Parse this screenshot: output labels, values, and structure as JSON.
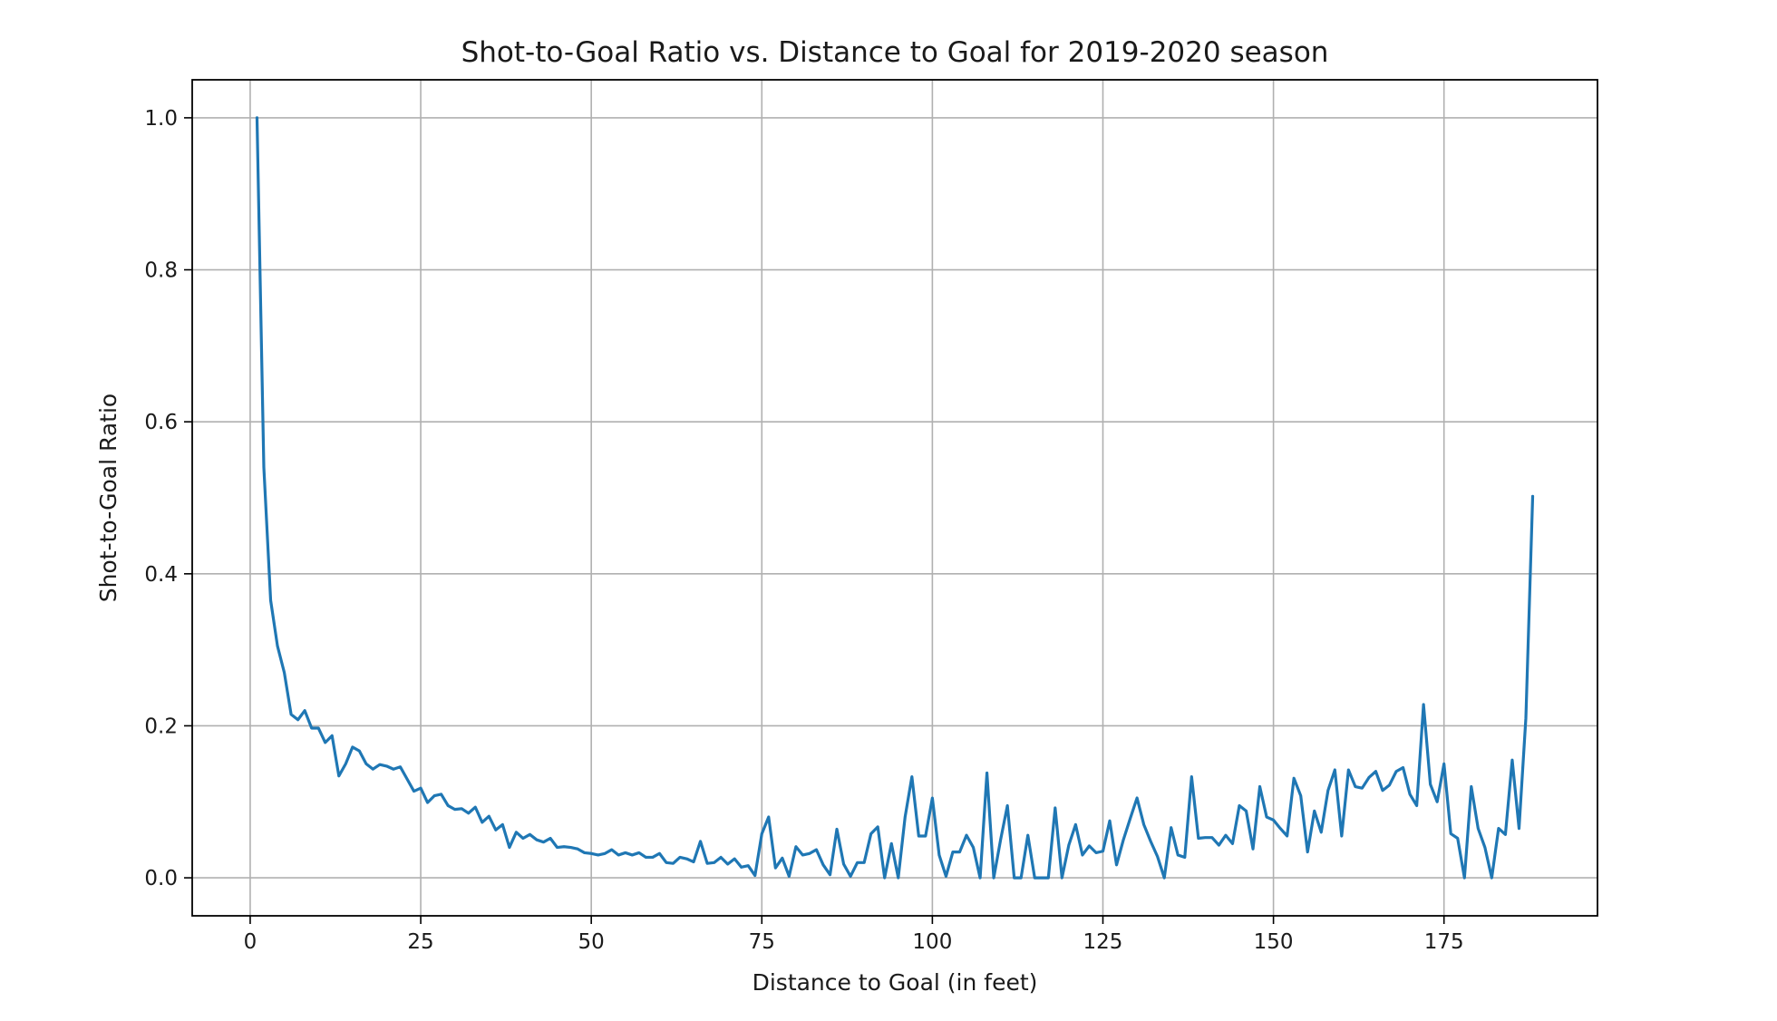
{
  "chart_data": {
    "type": "line",
    "title": "Shot-to-Goal Ratio vs. Distance to Goal for 2019-2020 season",
    "xlabel": "Distance to Goal (in feet)",
    "ylabel": "Shot-to-Goal Ratio",
    "xlim": [
      -8.5,
      197.5
    ],
    "ylim": [
      -0.05,
      1.05
    ],
    "xticks": [
      0,
      25,
      50,
      75,
      100,
      125,
      150,
      175
    ],
    "yticks": [
      0.0,
      0.2,
      0.4,
      0.6,
      0.8,
      1.0
    ],
    "xtick_labels": [
      "0",
      "25",
      "50",
      "75",
      "100",
      "125",
      "150",
      "175"
    ],
    "ytick_labels": [
      "0.0",
      "0.2",
      "0.4",
      "0.6",
      "0.8",
      "1.0"
    ],
    "grid": true,
    "line_color": "#1f77b4",
    "series": [
      {
        "x": [
          1,
          2,
          3,
          4,
          5,
          6,
          7,
          8,
          9,
          10,
          11,
          12,
          13,
          14,
          15,
          16,
          17,
          18,
          19,
          20,
          21,
          22,
          23,
          24,
          25,
          26,
          27,
          28,
          29,
          30,
          31,
          32,
          33,
          34,
          35,
          36,
          37,
          38,
          39,
          40,
          41,
          42,
          43,
          44,
          45,
          46,
          47,
          48,
          49,
          50,
          51,
          52,
          53,
          54,
          55,
          56,
          57,
          58,
          59,
          60,
          61,
          62,
          63,
          64,
          65,
          66,
          67,
          68,
          69,
          70,
          71,
          72,
          73,
          74,
          75,
          76,
          77,
          78,
          79,
          80,
          81,
          82,
          83,
          84,
          85,
          86,
          87,
          88,
          89,
          90,
          91,
          92,
          93,
          94,
          95,
          96,
          97,
          98,
          99,
          100,
          101,
          102,
          103,
          104,
          105,
          106,
          107,
          108,
          109,
          110,
          111,
          112,
          113,
          114,
          115,
          116,
          117,
          118,
          119,
          120,
          121,
          122,
          123,
          124,
          125,
          126,
          127,
          128,
          129,
          130,
          131,
          132,
          133,
          134,
          135,
          136,
          137,
          138,
          139,
          140,
          141,
          142,
          143,
          144,
          145,
          146,
          147,
          148,
          149,
          150,
          151,
          152,
          153,
          154,
          155,
          156,
          157,
          158,
          159,
          160,
          161,
          162,
          163,
          164,
          165,
          166,
          167,
          168,
          169,
          170,
          171,
          172,
          173,
          174,
          175,
          176,
          177,
          178,
          179,
          180,
          181,
          182,
          183,
          184,
          185,
          186,
          187,
          188
        ],
        "y": [
          1.0,
          0.54,
          0.365,
          0.305,
          0.27,
          0.215,
          0.208,
          0.22,
          0.197,
          0.197,
          0.178,
          0.187,
          0.134,
          0.15,
          0.172,
          0.167,
          0.15,
          0.143,
          0.149,
          0.147,
          0.143,
          0.146,
          0.13,
          0.114,
          0.118,
          0.099,
          0.108,
          0.11,
          0.095,
          0.09,
          0.091,
          0.085,
          0.093,
          0.073,
          0.081,
          0.063,
          0.07,
          0.04,
          0.06,
          0.052,
          0.057,
          0.05,
          0.047,
          0.052,
          0.04,
          0.041,
          0.04,
          0.038,
          0.033,
          0.032,
          0.03,
          0.032,
          0.037,
          0.03,
          0.033,
          0.03,
          0.033,
          0.027,
          0.027,
          0.032,
          0.02,
          0.019,
          0.027,
          0.025,
          0.021,
          0.048,
          0.019,
          0.02,
          0.027,
          0.018,
          0.025,
          0.014,
          0.016,
          0.003,
          0.058,
          0.08,
          0.013,
          0.026,
          0.002,
          0.041,
          0.03,
          0.032,
          0.037,
          0.017,
          0.004,
          0.064,
          0.018,
          0.002,
          0.02,
          0.02,
          0.058,
          0.067,
          0.0,
          0.045,
          0.0,
          0.08,
          0.133,
          0.055,
          0.055,
          0.105,
          0.03,
          0.002,
          0.034,
          0.034,
          0.056,
          0.04,
          0.0,
          0.138,
          0.0,
          0.05,
          0.095,
          0.0,
          0.0,
          0.056,
          0.0,
          0.0,
          0.0,
          0.092,
          0.0,
          0.043,
          0.07,
          0.03,
          0.042,
          0.033,
          0.035,
          0.075,
          0.017,
          0.05,
          0.078,
          0.105,
          0.07,
          0.048,
          0.028,
          0.0,
          0.066,
          0.03,
          0.027,
          0.133,
          0.052,
          0.053,
          0.053,
          0.043,
          0.056,
          0.045,
          0.095,
          0.088,
          0.038,
          0.12,
          0.08,
          0.076,
          0.065,
          0.055,
          0.131,
          0.108,
          0.034,
          0.088,
          0.06,
          0.115,
          0.142,
          0.055,
          0.142,
          0.12,
          0.118,
          0.132,
          0.14,
          0.115,
          0.122,
          0.14,
          0.145,
          0.11,
          0.095,
          0.228,
          0.123,
          0.1,
          0.15,
          0.058,
          0.052,
          0.0,
          0.12,
          0.065,
          0.04,
          0.0,
          0.065,
          0.057,
          0.155,
          0.065,
          0.21,
          0.502
        ]
      }
    ]
  }
}
